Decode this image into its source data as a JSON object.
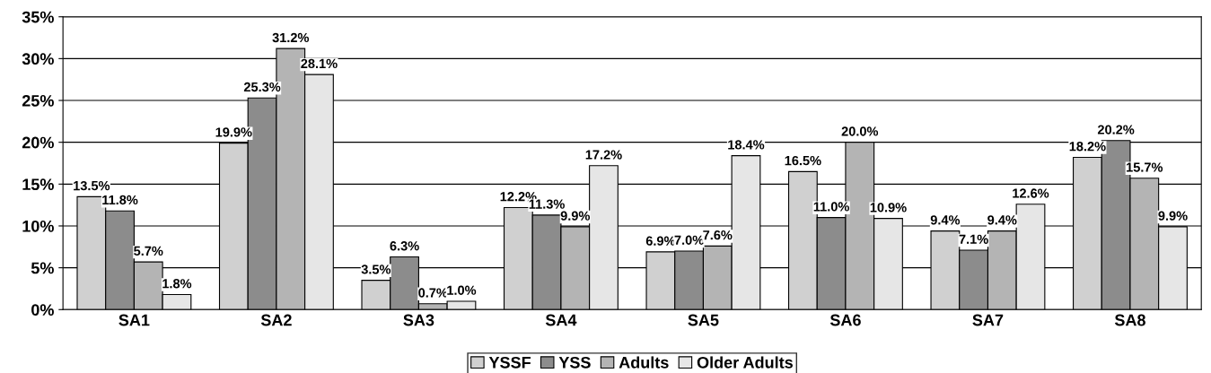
{
  "chart_data": {
    "type": "bar",
    "categories": [
      "SA1",
      "SA2",
      "SA3",
      "SA4",
      "SA5",
      "SA6",
      "SA7",
      "SA8"
    ],
    "series": [
      {
        "name": "YSSF",
        "color": "#d0d0d0",
        "values": [
          13.5,
          19.9,
          3.5,
          12.2,
          6.9,
          16.5,
          9.4,
          18.2
        ],
        "value_labels": [
          "13.5%",
          "19.9%",
          "3.5%",
          "12.2%",
          "6.9%",
          "16.5%",
          "9.4%",
          "18.2%"
        ]
      },
      {
        "name": "YSS",
        "color": "#8c8c8c",
        "values": [
          11.8,
          25.3,
          6.3,
          11.3,
          7.0,
          11.0,
          7.1,
          20.2
        ],
        "value_labels": [
          "11.8%",
          "25.3%",
          "6.3%",
          "11.3%",
          "7.0%",
          "11.0%",
          "7.1%",
          "20.2%"
        ]
      },
      {
        "name": "Adults",
        "color": "#b4b4b4",
        "values": [
          5.7,
          31.2,
          0.7,
          9.9,
          7.6,
          20.0,
          9.4,
          15.7
        ],
        "value_labels": [
          "5.7%",
          "31.2%",
          "0.7%",
          "9.9%",
          "7.6%",
          "20.0%",
          "9.4%",
          "15.7%"
        ]
      },
      {
        "name": "Older Adults",
        "color": "#e6e6e6",
        "values": [
          1.8,
          28.1,
          1.0,
          17.2,
          18.4,
          10.9,
          12.6,
          9.9
        ],
        "value_labels": [
          "1.8%",
          "28.1%",
          "1.0%",
          "17.2%",
          "18.4%",
          "10.9%",
          "12.6%",
          "9.9%"
        ]
      }
    ],
    "ylim": [
      0,
      35
    ],
    "yticks": [
      {
        "value": 0,
        "label": "0%"
      },
      {
        "value": 5,
        "label": "5%"
      },
      {
        "value": 10,
        "label": "10%"
      },
      {
        "value": 15,
        "label": "15%"
      },
      {
        "value": 20,
        "label": "20%"
      },
      {
        "value": 25,
        "label": "25%"
      },
      {
        "value": 30,
        "label": "30%"
      },
      {
        "value": 35,
        "label": "35%"
      }
    ],
    "grid": "y",
    "legend": "bottom"
  }
}
